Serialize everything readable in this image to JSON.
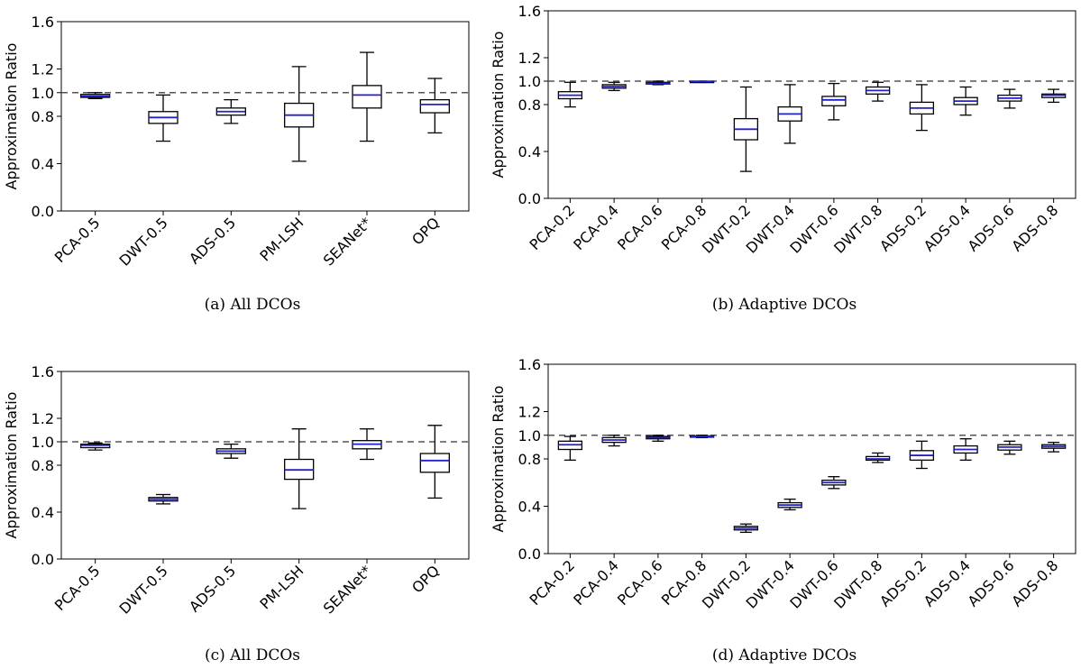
{
  "chart_data": [
    {
      "type": "boxplot",
      "panel": "a",
      "caption": "(a) All DCOs",
      "ylabel": "Approximation Ratio",
      "ylim": [
        0.0,
        1.6
      ],
      "yticks": [
        "0.0",
        "0.4",
        "0.8",
        "1.0",
        "1.2",
        "1.6"
      ],
      "reference_line": 1.0,
      "categories": [
        "PCA-0.5",
        "DWT-0.5",
        "ADS-0.5",
        "PM-LSH",
        "SEANet*",
        "OPQ"
      ],
      "boxes": [
        {
          "min": 0.95,
          "q1": 0.96,
          "median": 0.97,
          "q3": 0.985,
          "max": 1.0
        },
        {
          "min": 0.59,
          "q1": 0.74,
          "median": 0.79,
          "q3": 0.84,
          "max": 0.98
        },
        {
          "min": 0.74,
          "q1": 0.81,
          "median": 0.84,
          "q3": 0.87,
          "max": 0.94
        },
        {
          "min": 0.42,
          "q1": 0.71,
          "median": 0.81,
          "q3": 0.91,
          "max": 1.22
        },
        {
          "min": 0.59,
          "q1": 0.87,
          "median": 0.98,
          "q3": 1.06,
          "max": 1.34
        },
        {
          "min": 0.66,
          "q1": 0.83,
          "median": 0.9,
          "q3": 0.94,
          "max": 1.12
        }
      ]
    },
    {
      "type": "boxplot",
      "panel": "b",
      "caption": "(b) Adaptive DCOs",
      "ylabel": "Approximation Ratio",
      "ylim": [
        0.0,
        1.6
      ],
      "yticks": [
        "0.0",
        "0.4",
        "0.8",
        "1.0",
        "1.2",
        "1.6"
      ],
      "reference_line": 1.0,
      "categories": [
        "PCA-0.2",
        "PCA-0.4",
        "PCA-0.6",
        "PCA-0.8",
        "DWT-0.2",
        "DWT-0.4",
        "DWT-0.6",
        "DWT-0.8",
        "ADS-0.2",
        "ADS-0.4",
        "ADS-0.6",
        "ADS-0.8"
      ],
      "boxes": [
        {
          "min": 0.78,
          "q1": 0.85,
          "median": 0.88,
          "q3": 0.91,
          "max": 0.99
        },
        {
          "min": 0.92,
          "q1": 0.94,
          "median": 0.955,
          "q3": 0.97,
          "max": 0.99
        },
        {
          "min": 0.97,
          "q1": 0.975,
          "median": 0.98,
          "q3": 0.99,
          "max": 1.0
        },
        {
          "min": 0.995,
          "q1": 0.997,
          "median": 0.998,
          "q3": 0.999,
          "max": 1.0
        },
        {
          "min": 0.23,
          "q1": 0.5,
          "median": 0.59,
          "q3": 0.68,
          "max": 0.95
        },
        {
          "min": 0.47,
          "q1": 0.66,
          "median": 0.72,
          "q3": 0.78,
          "max": 0.97
        },
        {
          "min": 0.67,
          "q1": 0.79,
          "median": 0.84,
          "q3": 0.87,
          "max": 0.98
        },
        {
          "min": 0.83,
          "q1": 0.89,
          "median": 0.92,
          "q3": 0.95,
          "max": 0.99
        },
        {
          "min": 0.58,
          "q1": 0.72,
          "median": 0.77,
          "q3": 0.82,
          "max": 0.97
        },
        {
          "min": 0.71,
          "q1": 0.8,
          "median": 0.83,
          "q3": 0.86,
          "max": 0.95
        },
        {
          "min": 0.77,
          "q1": 0.83,
          "median": 0.855,
          "q3": 0.88,
          "max": 0.93
        },
        {
          "min": 0.82,
          "q1": 0.86,
          "median": 0.88,
          "q3": 0.89,
          "max": 0.93
        }
      ]
    },
    {
      "type": "boxplot",
      "panel": "c",
      "caption": "(c) All DCOs",
      "ylabel": "Approximation Ratio",
      "ylim": [
        0.0,
        1.6
      ],
      "yticks": [
        "0.0",
        "0.4",
        "0.8",
        "1.0",
        "1.2",
        "1.6"
      ],
      "reference_line": 1.0,
      "categories": [
        "PCA-0.5",
        "DWT-0.5",
        "ADS-0.5",
        "PM-LSH",
        "SEANet*",
        "OPQ"
      ],
      "boxes": [
        {
          "min": 0.93,
          "q1": 0.95,
          "median": 0.97,
          "q3": 0.98,
          "max": 0.99
        },
        {
          "min": 0.47,
          "q1": 0.495,
          "median": 0.51,
          "q3": 0.525,
          "max": 0.55
        },
        {
          "min": 0.86,
          "q1": 0.9,
          "median": 0.92,
          "q3": 0.94,
          "max": 0.98
        },
        {
          "min": 0.43,
          "q1": 0.68,
          "median": 0.76,
          "q3": 0.85,
          "max": 1.11
        },
        {
          "min": 0.85,
          "q1": 0.94,
          "median": 0.98,
          "q3": 1.01,
          "max": 1.11
        },
        {
          "min": 0.52,
          "q1": 0.74,
          "median": 0.84,
          "q3": 0.9,
          "max": 1.14
        }
      ]
    },
    {
      "type": "boxplot",
      "panel": "d",
      "caption": "(d) Adaptive DCOs",
      "ylabel": "Approximation Ratio",
      "ylim": [
        0.0,
        1.6
      ],
      "yticks": [
        "0.0",
        "0.4",
        "0.8",
        "1.0",
        "1.2",
        "1.6"
      ],
      "reference_line": 1.0,
      "categories": [
        "PCA-0.2",
        "PCA-0.4",
        "PCA-0.6",
        "PCA-0.8",
        "DWT-0.2",
        "DWT-0.4",
        "DWT-0.6",
        "DWT-0.8",
        "ADS-0.2",
        "ADS-0.4",
        "ADS-0.6",
        "ADS-0.8"
      ],
      "boxes": [
        {
          "min": 0.79,
          "q1": 0.88,
          "median": 0.92,
          "q3": 0.95,
          "max": 0.99
        },
        {
          "min": 0.91,
          "q1": 0.94,
          "median": 0.96,
          "q3": 0.98,
          "max": 1.0
        },
        {
          "min": 0.95,
          "q1": 0.97,
          "median": 0.98,
          "q3": 0.99,
          "max": 1.0
        },
        {
          "min": 0.98,
          "q1": 0.985,
          "median": 0.99,
          "q3": 0.995,
          "max": 1.0
        },
        {
          "min": 0.18,
          "q1": 0.2,
          "median": 0.215,
          "q3": 0.23,
          "max": 0.25
        },
        {
          "min": 0.37,
          "q1": 0.39,
          "median": 0.41,
          "q3": 0.43,
          "max": 0.46
        },
        {
          "min": 0.55,
          "q1": 0.58,
          "median": 0.6,
          "q3": 0.62,
          "max": 0.65
        },
        {
          "min": 0.77,
          "q1": 0.79,
          "median": 0.8,
          "q3": 0.82,
          "max": 0.85
        },
        {
          "min": 0.72,
          "q1": 0.79,
          "median": 0.83,
          "q3": 0.87,
          "max": 0.95
        },
        {
          "min": 0.79,
          "q1": 0.85,
          "median": 0.88,
          "q3": 0.91,
          "max": 0.97
        },
        {
          "min": 0.84,
          "q1": 0.875,
          "median": 0.9,
          "q3": 0.92,
          "max": 0.95
        },
        {
          "min": 0.86,
          "q1": 0.89,
          "median": 0.905,
          "q3": 0.92,
          "max": 0.94
        }
      ]
    }
  ],
  "colors": {
    "box_edge": "#000000",
    "median": "#2222cc",
    "reference_line": "#555555"
  }
}
